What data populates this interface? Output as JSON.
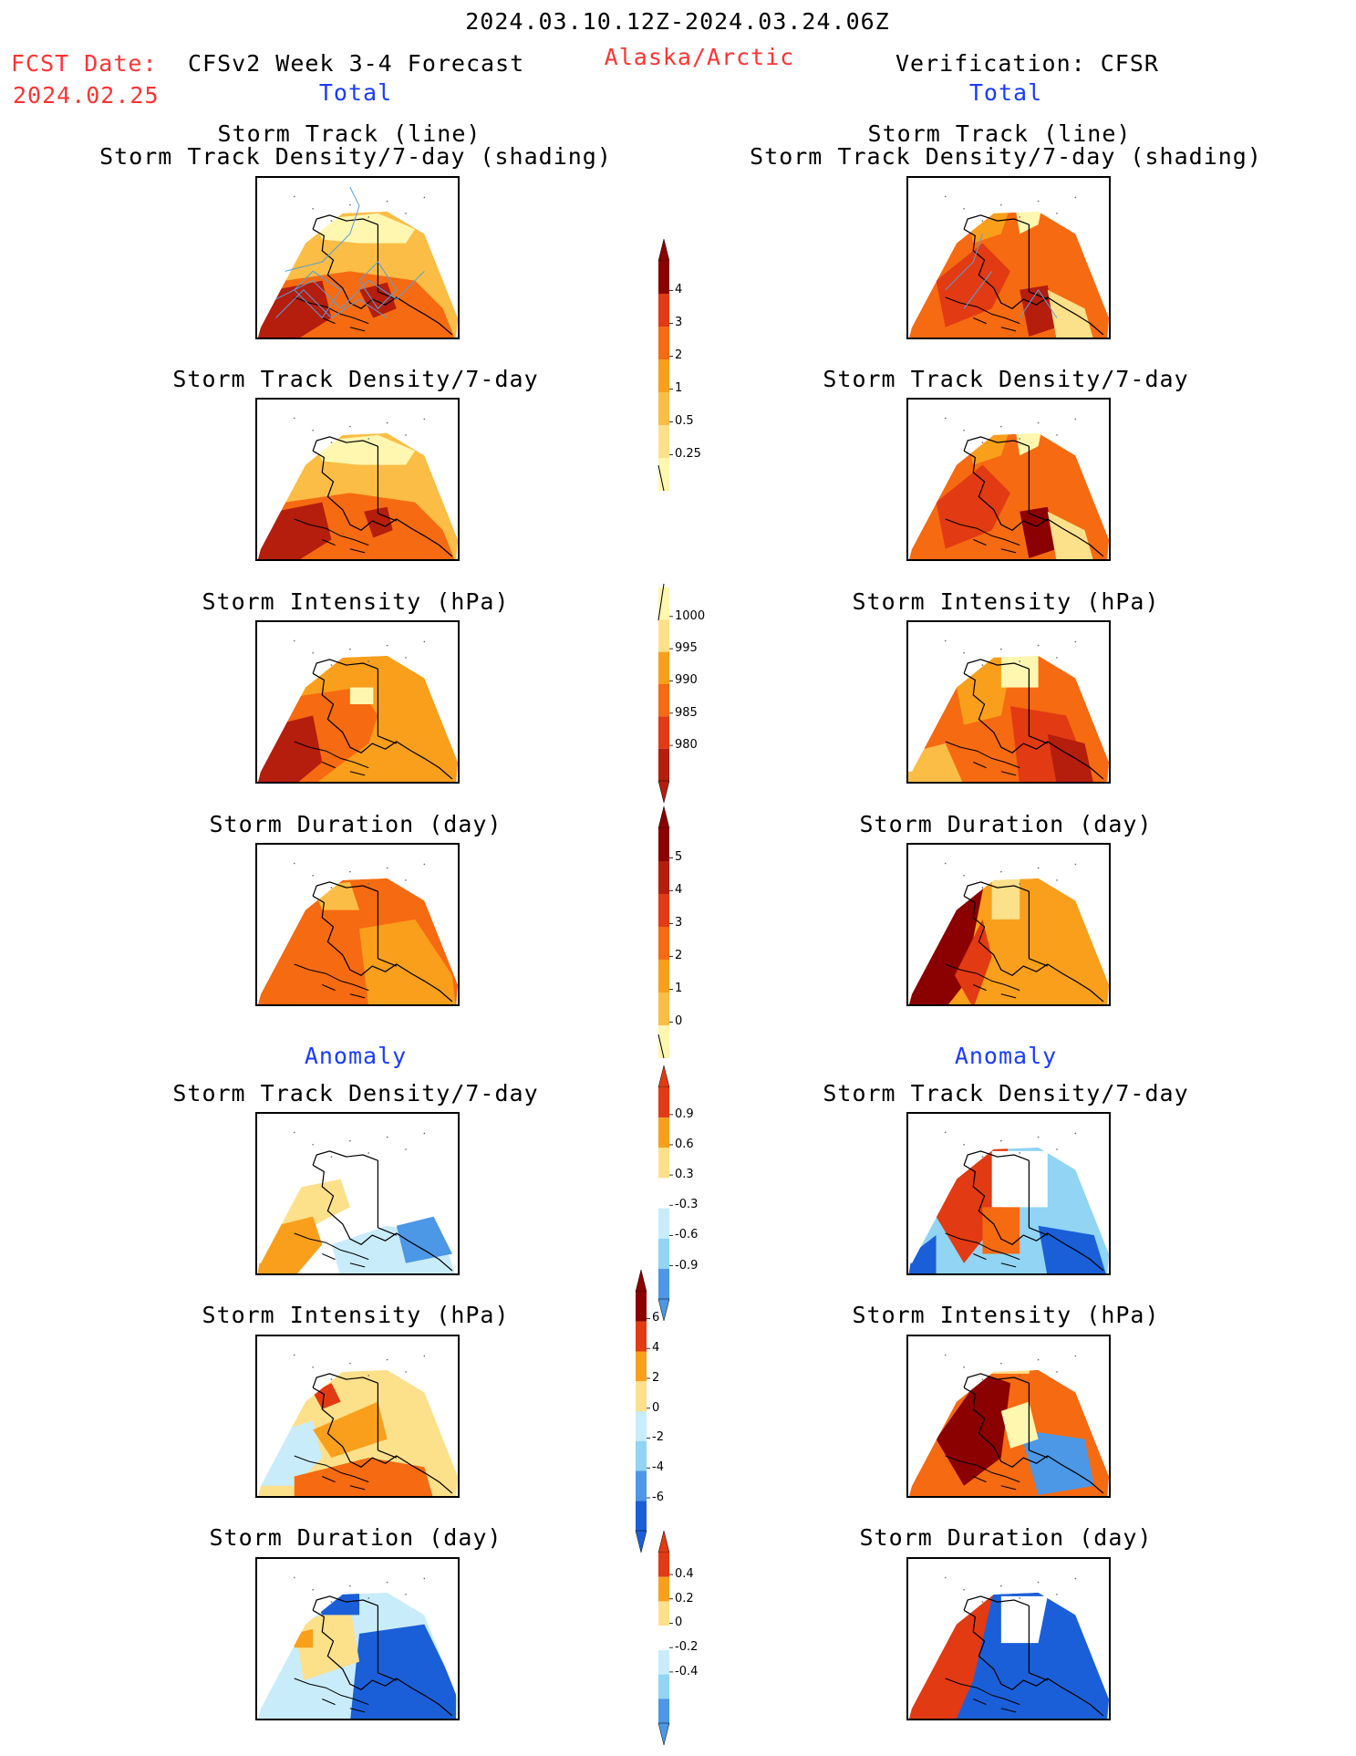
{
  "header": {
    "period": "2024.03.10.12Z-2024.03.24.06Z",
    "fcst_label": "FCST Date:",
    "fcst_date": "2024.02.25",
    "model_title": "CFSv2 Week 3-4 Forecast",
    "region": "Alaska/Arctic",
    "verification": "Verification: CFSR",
    "left_total": "Total",
    "right_total": "Total"
  },
  "titles": {
    "track_line": "Storm Track (line)",
    "track_shading": "Storm Track Density/7-day (shading)",
    "density": "Storm Track Density/7-day",
    "intensity": "Storm Intensity (hPa)",
    "duration": "Storm Duration (day)",
    "anomaly": "Anomaly"
  },
  "colors": {
    "c1": "#fff7b0",
    "c2": "#fde08a",
    "c3": "#fbbd45",
    "c4": "#f99f1b",
    "c5": "#f66a11",
    "c6": "#e23a12",
    "c7": "#b51d0c",
    "c8": "#8b0000",
    "b1": "#c9ecfa",
    "b2": "#91d4f4",
    "b3": "#4c97e6",
    "b4": "#1a5fd8",
    "track_line": "#5b9fd8"
  },
  "chart_data": [
    {
      "type": "heatmap",
      "name": "total_track_density",
      "colorbar_ticks": [
        "4",
        "3",
        "2",
        "1",
        "0.5",
        "0.25"
      ],
      "forecast_max": 3,
      "verification_max": 4
    },
    {
      "type": "heatmap",
      "name": "total_intensity",
      "colorbar_ticks": [
        "1000",
        "995",
        "990",
        "985",
        "980"
      ]
    },
    {
      "type": "heatmap",
      "name": "total_duration",
      "colorbar_ticks": [
        "5",
        "4",
        "3",
        "2",
        "1",
        "0"
      ]
    },
    {
      "type": "heatmap",
      "name": "anomaly_track_density",
      "colorbar_ticks": [
        "0.9",
        "0.6",
        "0.3",
        "-0.3",
        "-0.6",
        "-0.9"
      ]
    },
    {
      "type": "heatmap",
      "name": "anomaly_intensity",
      "colorbar_ticks": [
        "6",
        "4",
        "2",
        "0",
        "-2",
        "-4",
        "-6"
      ]
    },
    {
      "type": "heatmap",
      "name": "anomaly_duration",
      "colorbar_ticks": [
        "0.4",
        "0.2",
        "0",
        "-0.2",
        "-0.4"
      ]
    }
  ]
}
